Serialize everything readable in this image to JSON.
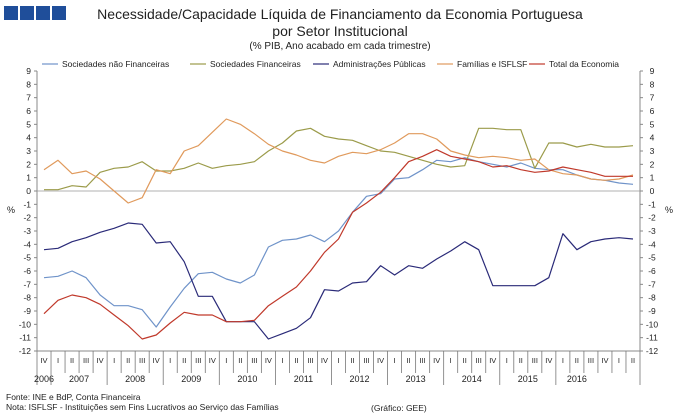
{
  "logo": {
    "colors": [
      "#1f4e9a",
      "#1f4e9a",
      "#1f4e9a",
      "#1f4e9a"
    ]
  },
  "header": {
    "title_line1": "Necessidade/Capacidade Líquida de Financiamento da Economia Portuguesa",
    "title_line2": "por Setor Institucional",
    "subtitle": "(% PIB, Ano acabado em cada trimestre)"
  },
  "footer": {
    "source": "Fonte: INE e BdP, Conta Financeira",
    "note": "Nota: ISFLSF - Instituições sem Fins Lucrativos ao Serviço das Famílias",
    "credit": "(Gráfico: GEE)"
  },
  "chart_data": {
    "type": "line",
    "title": "Necessidade/Capacidade Líquida de Financiamento da Economia Portuguesa por Setor Institucional",
    "ylabel_left": "%",
    "ylabel_right": "%",
    "ylim": [
      -12,
      9
    ],
    "yticks": [
      9,
      8,
      7,
      6,
      5,
      4,
      3,
      2,
      1,
      0,
      -1,
      -2,
      -3,
      -4,
      -5,
      -6,
      -7,
      -8,
      -9,
      -10,
      -11,
      -12
    ],
    "legend_position": "top",
    "x_quarters": [
      "IV",
      "I",
      "II",
      "III",
      "IV",
      "I",
      "II",
      "III",
      "IV",
      "I",
      "II",
      "III",
      "IV",
      "I",
      "II",
      "III",
      "IV",
      "I",
      "II",
      "III",
      "IV",
      "I",
      "II",
      "III",
      "IV",
      "I",
      "II",
      "III",
      "IV",
      "I",
      "II",
      "III",
      "IV",
      "I",
      "II",
      "III",
      "IV",
      "I",
      "II",
      "III",
      "IV",
      "I",
      "II"
    ],
    "x_years": [
      {
        "label": "2006",
        "start": 0,
        "end": 0
      },
      {
        "label": "2007",
        "start": 1,
        "end": 4
      },
      {
        "label": "2008",
        "start": 5,
        "end": 8
      },
      {
        "label": "2009",
        "start": 9,
        "end": 12
      },
      {
        "label": "2010",
        "start": 13,
        "end": 16
      },
      {
        "label": "2011",
        "start": 17,
        "end": 20
      },
      {
        "label": "2012",
        "start": 21,
        "end": 24
      },
      {
        "label": "2013",
        "start": 25,
        "end": 28
      },
      {
        "label": "2014",
        "start": 29,
        "end": 32
      },
      {
        "label": "2015",
        "start": 33,
        "end": 36
      },
      {
        "label": "2016",
        "start": 37,
        "end": 39
      }
    ],
    "series": [
      {
        "name": "Sociedades não Financeiras",
        "color": "#6f93c9",
        "values": [
          -6.5,
          -6.4,
          -6.0,
          -6.5,
          -7.8,
          -8.6,
          -8.6,
          -8.9,
          -10.2,
          -8.7,
          -7.3,
          -6.2,
          -6.1,
          -6.6,
          -6.9,
          -6.3,
          -4.2,
          -3.7,
          -3.6,
          -3.3,
          -3.8,
          -3.0,
          -1.6,
          -0.4,
          -0.2,
          0.9,
          1.0,
          1.6,
          2.3,
          2.2,
          2.5,
          2.2,
          2.0,
          1.8,
          2.1,
          1.7,
          1.6,
          1.6,
          1.2,
          0.9,
          0.8,
          0.6,
          0.5
        ]
      },
      {
        "name": "Sociedades Financeiras",
        "color": "#9b9b4a",
        "values": [
          0.1,
          0.1,
          0.4,
          0.3,
          1.4,
          1.7,
          1.8,
          2.2,
          1.5,
          1.5,
          1.7,
          2.1,
          1.7,
          1.9,
          2.0,
          2.2,
          3.0,
          3.6,
          4.5,
          4.7,
          4.1,
          3.9,
          3.8,
          3.4,
          3.0,
          2.9,
          2.6,
          2.3,
          2.0,
          1.8,
          1.9,
          4.7,
          4.7,
          4.6,
          4.6,
          1.7,
          3.6,
          3.6,
          3.3,
          3.5,
          3.3,
          3.3,
          3.4
        ]
      },
      {
        "name": "Administrações Públicas",
        "color": "#2a2a78",
        "values": [
          -4.4,
          -4.3,
          -3.8,
          -3.5,
          -3.1,
          -2.8,
          -2.4,
          -2.5,
          -3.9,
          -3.8,
          -5.3,
          -7.9,
          -7.9,
          -9.8,
          -9.8,
          -9.8,
          -11.1,
          -10.7,
          -10.3,
          -9.5,
          -7.4,
          -7.5,
          -6.9,
          -6.8,
          -5.6,
          -6.3,
          -5.6,
          -5.8,
          -5.1,
          -4.5,
          -3.8,
          -4.4,
          -7.1,
          -7.1,
          -7.1,
          -7.1,
          -6.5,
          -3.2,
          -4.4,
          -3.8,
          -3.6,
          -3.5,
          -3.6
        ]
      },
      {
        "name": "Famílias e ISFLSF",
        "color": "#e09a5c",
        "values": [
          1.6,
          2.3,
          1.3,
          1.5,
          0.9,
          0.0,
          -0.9,
          -0.5,
          1.6,
          1.3,
          3.0,
          3.4,
          4.4,
          5.4,
          5.0,
          4.3,
          3.5,
          3.0,
          2.7,
          2.3,
          2.1,
          2.6,
          2.9,
          2.8,
          3.1,
          3.6,
          4.3,
          4.3,
          3.9,
          3.0,
          2.7,
          2.5,
          2.6,
          2.5,
          2.3,
          2.4,
          1.6,
          1.3,
          1.2,
          0.9,
          0.8,
          0.9,
          1.2
        ]
      },
      {
        "name": "Total da Economia",
        "color": "#c0392b",
        "values": [
          -9.2,
          -8.2,
          -7.8,
          -8.0,
          -8.5,
          -9.3,
          -10.1,
          -11.1,
          -10.8,
          -9.9,
          -9.1,
          -9.3,
          -9.3,
          -9.8,
          -9.8,
          -9.7,
          -8.6,
          -7.9,
          -7.2,
          -6.0,
          -4.6,
          -3.6,
          -1.6,
          -0.9,
          -0.1,
          1.0,
          2.2,
          2.6,
          3.1,
          2.6,
          2.4,
          2.2,
          1.8,
          1.9,
          1.6,
          1.4,
          1.5,
          1.8,
          1.6,
          1.4,
          1.1,
          1.1,
          1.1
        ]
      }
    ]
  }
}
